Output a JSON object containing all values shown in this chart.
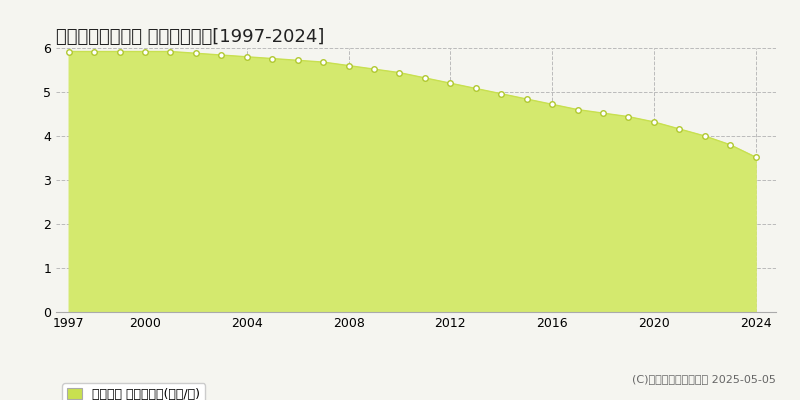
{
  "title": "二戸郡一戸町岩舘 基準地価推移[1997-2024]",
  "years": [
    1997,
    1998,
    1999,
    2000,
    2001,
    2002,
    2003,
    2004,
    2005,
    2006,
    2007,
    2008,
    2009,
    2010,
    2011,
    2012,
    2013,
    2014,
    2015,
    2016,
    2017,
    2018,
    2019,
    2020,
    2021,
    2022,
    2023,
    2024
  ],
  "values": [
    5.92,
    5.92,
    5.92,
    5.92,
    5.92,
    5.88,
    5.84,
    5.8,
    5.76,
    5.72,
    5.68,
    5.6,
    5.52,
    5.44,
    5.32,
    5.2,
    5.08,
    4.96,
    4.84,
    4.72,
    4.6,
    4.52,
    4.44,
    4.32,
    4.16,
    4.0,
    3.8,
    3.52
  ],
  "fill_color": "#d4e96e",
  "line_color": "#c8e050",
  "marker_facecolor": "#ffffff",
  "marker_edgecolor": "#b0c830",
  "background_color": "#f5f5f0",
  "plot_bg_color": "#f5f5f0",
  "grid_color": "#bbbbbb",
  "ylim": [
    0,
    6
  ],
  "yticks": [
    0,
    1,
    2,
    3,
    4,
    5,
    6
  ],
  "xlim_start": 1996.5,
  "xlim_end": 2024.8,
  "xtick_years": [
    1997,
    2000,
    2004,
    2008,
    2012,
    2016,
    2020,
    2024
  ],
  "legend_label": "基準地価 平均坪単価(万円/坪)",
  "legend_square_color": "#c8e050",
  "copyright_text": "(C)土地価格ドットコム 2025-05-05",
  "title_fontsize": 13,
  "tick_fontsize": 9,
  "legend_fontsize": 9,
  "copyright_fontsize": 8
}
